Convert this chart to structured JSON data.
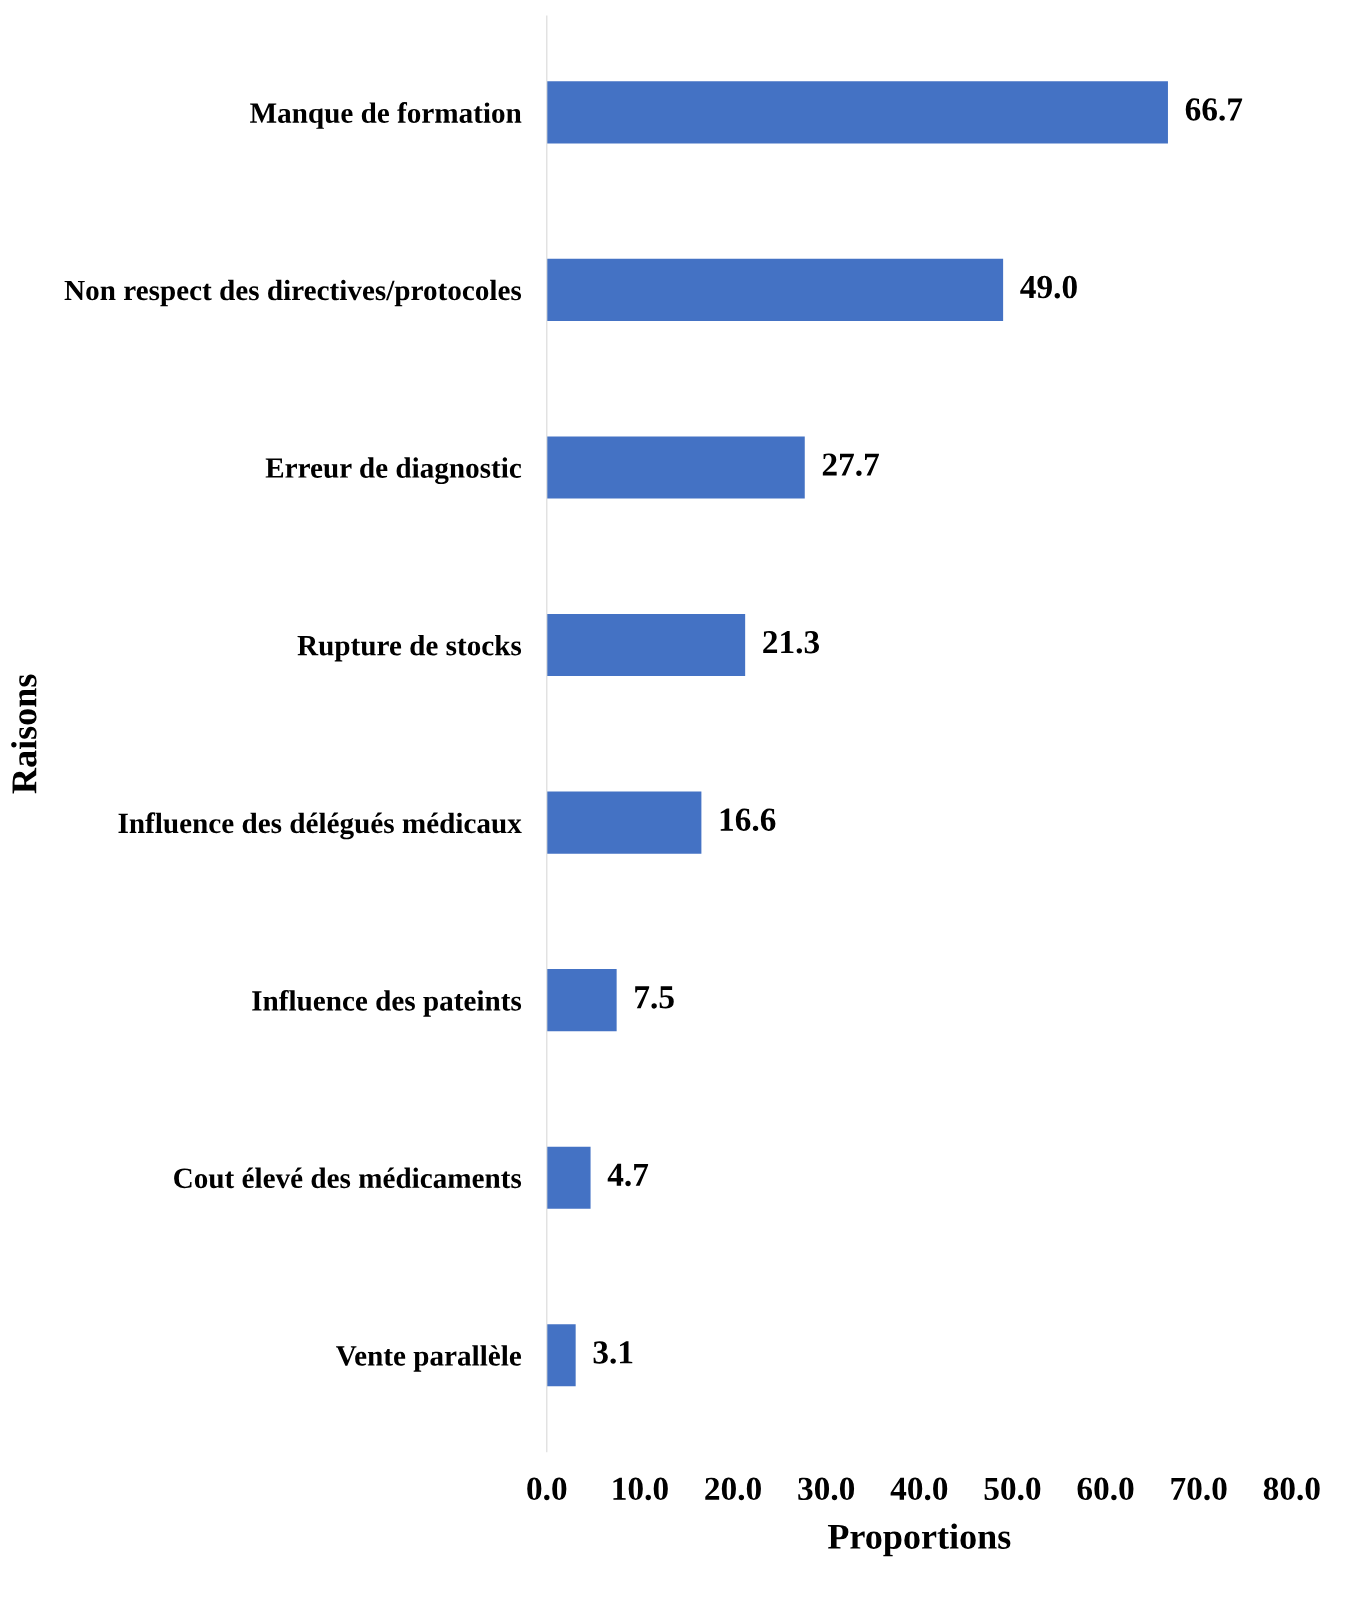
{
  "chart_data": {
    "type": "bar",
    "orientation": "horizontal",
    "xlabel": "Proportions",
    "ylabel": "Raisons",
    "categories": [
      "Manque de formation",
      "Non respect des directives/protocoles",
      "Erreur de diagnostic",
      "Rupture de stocks",
      "Influence des délégués médicaux",
      "Influence des pateints",
      "Cout élevé des médicaments",
      "Vente parallèle"
    ],
    "values": [
      66.7,
      49.0,
      27.7,
      21.3,
      16.6,
      7.5,
      4.7,
      3.1
    ],
    "value_labels": [
      "66.7",
      "49.0",
      "27.7",
      "21.3",
      "16.6",
      "7.5",
      "4.7",
      "3.1"
    ],
    "color": "#4472c4",
    "xlim": [
      0,
      80
    ],
    "xticks": [
      {
        "value": 0,
        "label": "0.0"
      },
      {
        "value": 10,
        "label": "10.0"
      },
      {
        "value": 20,
        "label": "20.0"
      },
      {
        "value": 30,
        "label": "30.0"
      },
      {
        "value": 40,
        "label": "40.0"
      },
      {
        "value": 50,
        "label": "50.0"
      },
      {
        "value": 60,
        "label": "60.0"
      },
      {
        "value": 70,
        "label": "70.0"
      },
      {
        "value": 80,
        "label": "80.0"
      }
    ],
    "grid": false,
    "legend": false
  }
}
